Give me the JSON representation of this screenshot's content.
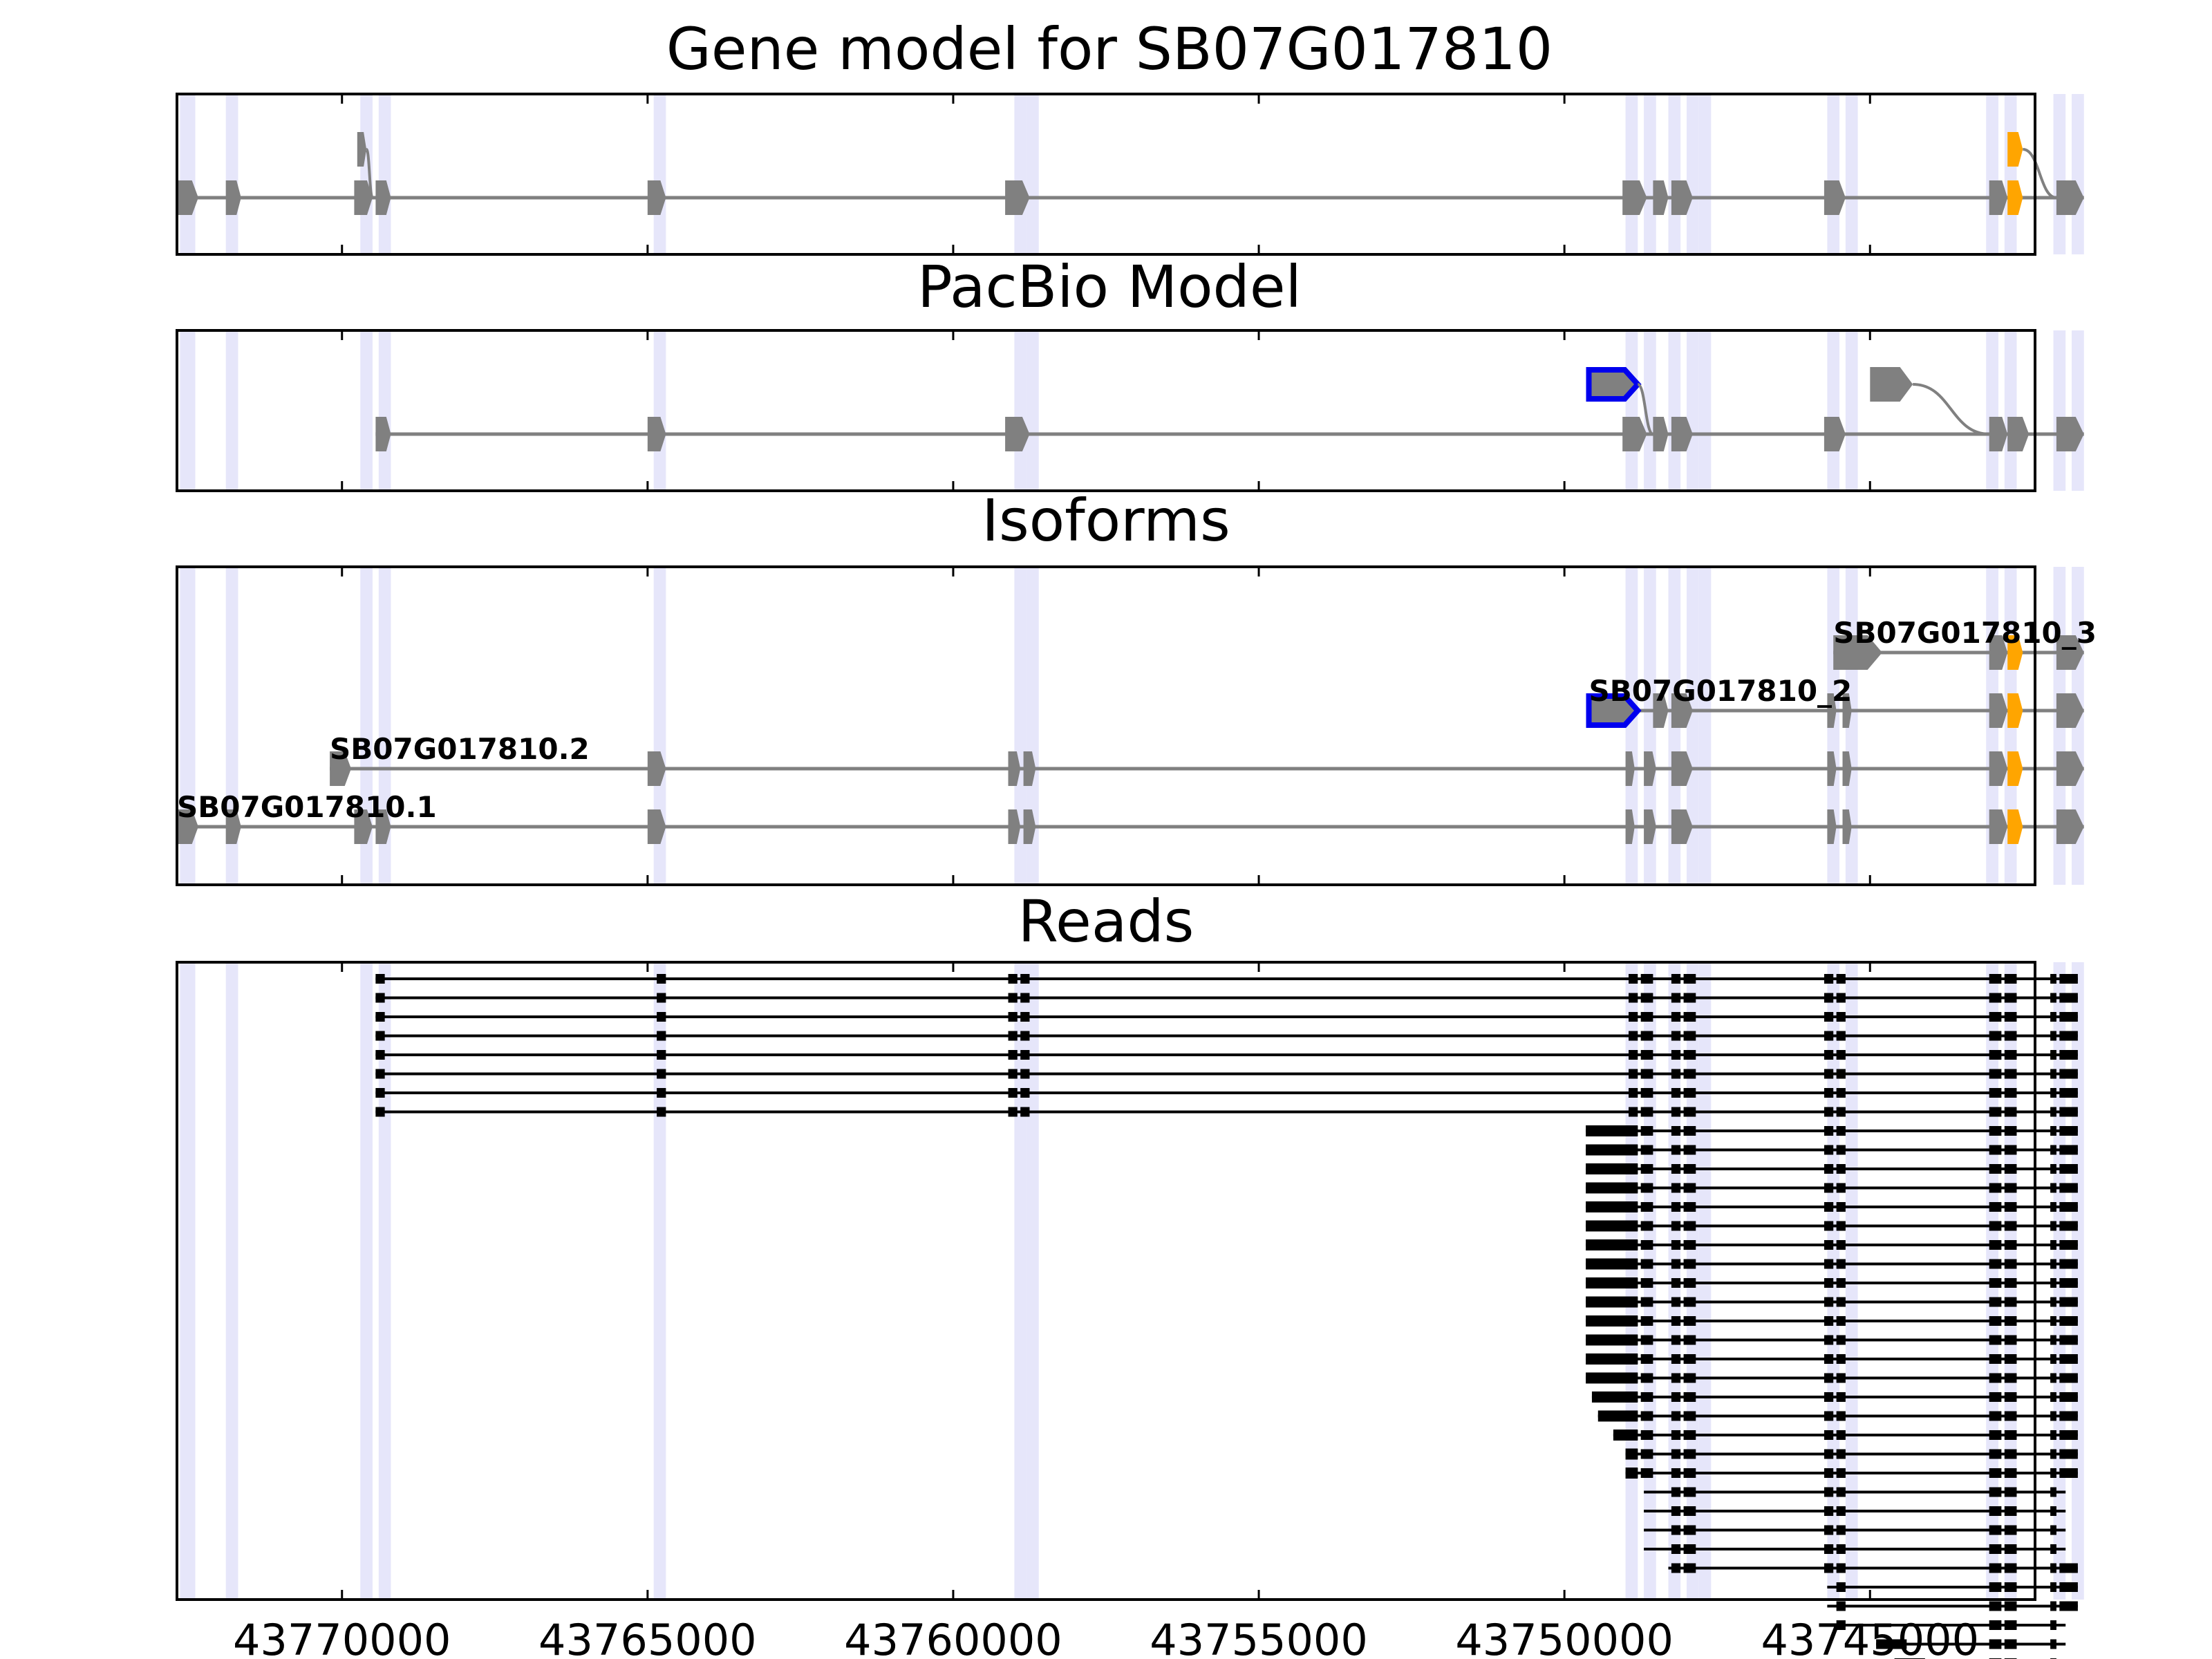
{
  "chart_data": {
    "type": "gene-track",
    "titles": {
      "gene_model": "Gene model for SB07G017810",
      "pacbio": "PacBio Model",
      "isoforms": "Isoforms",
      "reads": "Reads"
    },
    "x_axis": {
      "range": [
        43772700,
        43742300
      ],
      "ticks": [
        43770000,
        43765000,
        43760000,
        43755000,
        43750000,
        43745000
      ],
      "tick_labels": [
        "43770000",
        "43765000",
        "43760000",
        "43755000",
        "43750000",
        "43745000"
      ]
    },
    "colors": {
      "exon": "#808080",
      "cds_highlight": "#ffa500",
      "novel_outline": "#0000ee",
      "read": "#000000",
      "band": "#e6e6fa",
      "frame": "#000000"
    },
    "bands": [
      [
        43772650,
        43772400
      ],
      [
        43771900,
        43771700
      ],
      [
        43769700,
        43769500
      ],
      [
        43769400,
        43769200
      ],
      [
        43764900,
        43764700
      ],
      [
        43759000,
        43758800
      ],
      [
        43758800,
        43758600
      ],
      [
        43749000,
        43748800
      ],
      [
        43748700,
        43748500
      ],
      [
        43748300,
        43748100
      ],
      [
        43748000,
        43747800
      ],
      [
        43747800,
        43747600
      ],
      [
        43745700,
        43745500
      ],
      [
        43745400,
        43745200
      ],
      [
        43743100,
        43742900
      ],
      [
        43742800,
        43742600
      ],
      [
        43742000,
        43741800
      ],
      [
        43741700,
        43741500
      ]
    ],
    "gene_model": {
      "main_exons": [
        [
          43772700,
          43772350
        ],
        [
          43771900,
          43771650
        ],
        [
          43769800,
          43769500
        ],
        [
          43769450,
          43769200
        ],
        [
          43765000,
          43764700
        ],
        [
          43759150,
          43758750
        ],
        [
          43749050,
          43748650
        ],
        [
          43748550,
          43748300
        ],
        [
          43748250,
          43747900
        ],
        [
          43745750,
          43745400
        ],
        [
          43743050,
          43742750
        ],
        [
          43741950,
          43741500
        ]
      ],
      "cds_exons": [
        [
          43742750,
          43742500
        ]
      ],
      "upper_exons": [
        [
          43769750,
          43769600
        ],
        [
          43742750,
          43742500
        ]
      ],
      "junctions": [
        [
          43769600,
          43769500
        ],
        [
          43742500,
          43741950
        ]
      ]
    },
    "pacbio": {
      "main_exons": [
        [
          43769450,
          43769200
        ],
        [
          43765000,
          43764700
        ],
        [
          43759150,
          43758750
        ],
        [
          43749050,
          43748650
        ],
        [
          43748550,
          43748300
        ],
        [
          43748250,
          43747900
        ],
        [
          43745750,
          43745400
        ],
        [
          43743050,
          43742750
        ],
        [
          43742750,
          43742400
        ],
        [
          43741950,
          43741500
        ]
      ],
      "upper_exons": [
        [
          43745000,
          43744300
        ]
      ],
      "novel_exons": [
        [
          43749600,
          43748800
        ]
      ],
      "junctions": [
        [
          43748800,
          43748550
        ],
        [
          43744300,
          43743050
        ]
      ]
    },
    "isoforms": [
      {
        "label": "SB07G017810.1",
        "row": 0,
        "label_x": 43772700,
        "exons": [
          [
            43772700,
            43772350
          ],
          [
            43771900,
            43771650
          ],
          [
            43769800,
            43769500
          ],
          [
            43769450,
            43769200
          ],
          [
            43765000,
            43764700
          ],
          [
            43759100,
            43758900
          ],
          [
            43758850,
            43758650
          ],
          [
            43749000,
            43748850
          ],
          [
            43748700,
            43748500
          ],
          [
            43748250,
            43747900
          ],
          [
            43745700,
            43745550
          ],
          [
            43745450,
            43745300
          ],
          [
            43743050,
            43742750
          ],
          [
            43741950,
            43741500
          ]
        ],
        "cds": [
          [
            43742750,
            43742500
          ]
        ]
      },
      {
        "label": "SB07G017810.2",
        "row": 1,
        "label_x": 43770200,
        "exons": [
          [
            43770200,
            43769850
          ],
          [
            43765000,
            43764700
          ],
          [
            43759100,
            43758900
          ],
          [
            43758850,
            43758650
          ],
          [
            43749000,
            43748850
          ],
          [
            43748700,
            43748500
          ],
          [
            43748250,
            43747900
          ],
          [
            43745700,
            43745550
          ],
          [
            43745450,
            43745300
          ],
          [
            43743050,
            43742750
          ],
          [
            43741950,
            43741500
          ]
        ],
        "cds": [
          [
            43742750,
            43742500
          ]
        ]
      },
      {
        "label": "SB07G017810_2",
        "row": 2,
        "label_x": 43749600,
        "exons": [
          [
            43748550,
            43748300
          ],
          [
            43748250,
            43747900
          ],
          [
            43745700,
            43745550
          ],
          [
            43745450,
            43745300
          ],
          [
            43743050,
            43742750
          ],
          [
            43741950,
            43741500
          ]
        ],
        "novel": [
          [
            43749600,
            43748800
          ]
        ],
        "cds": [
          [
            43742750,
            43742500
          ]
        ]
      },
      {
        "label": "SB07G017810_3",
        "row": 3,
        "label_x": 43745600,
        "exons": [
          [
            43745600,
            43744800
          ],
          [
            43743050,
            43742750
          ],
          [
            43741950,
            43741500
          ]
        ],
        "cds": [
          [
            43742750,
            43742500
          ]
        ]
      }
    ],
    "reads": {
      "full_count": 8,
      "full_exons": [
        [
          43769450,
          43769300
        ],
        [
          43764850,
          43764700
        ],
        [
          43759100,
          43758950
        ],
        [
          43758900,
          43758750
        ],
        [
          43748950,
          43748800
        ],
        [
          43748750,
          43748550
        ],
        [
          43748250,
          43748100
        ],
        [
          43748050,
          43747850
        ],
        [
          43745750,
          43745600
        ],
        [
          43745550,
          43745400
        ],
        [
          43743050,
          43742850
        ],
        [
          43742800,
          43742600
        ],
        [
          43742050,
          43741950
        ],
        [
          43741900,
          43741600
        ]
      ],
      "partial_exons": [
        [
          43748950,
          43748800
        ],
        [
          43748750,
          43748550
        ],
        [
          43748250,
          43748100
        ],
        [
          43748050,
          43747850
        ],
        [
          43745750,
          43745600
        ],
        [
          43745550,
          43745400
        ],
        [
          43743050,
          43742850
        ],
        [
          43742800,
          43742600
        ],
        [
          43742050,
          43741950
        ],
        [
          43741900,
          43741600
        ]
      ],
      "partial_starts": [
        43749650,
        43749650,
        43749650,
        43749650,
        43749650,
        43749650,
        43749650,
        43749650,
        43749650,
        43749650,
        43749650,
        43749650,
        43749650,
        43749650,
        43749550,
        43749450,
        43749200,
        43749000,
        43749000,
        43748700,
        43748700,
        43748700,
        43748700,
        43748300,
        43745700,
        43745700,
        43745700,
        43744900,
        43744600
      ],
      "partial_ends": [
        43741600,
        43741600,
        43741600,
        43741600,
        43741600,
        43741600,
        43741600,
        43741600,
        43741600,
        43741600,
        43741600,
        43741600,
        43741600,
        43741600,
        43741600,
        43741600,
        43741600,
        43741600,
        43741600,
        43741800,
        43741800,
        43741800,
        43741800,
        43741600,
        43741600,
        43741600,
        43741800,
        43741800,
        43741800
      ],
      "short_first": [
        1,
        1,
        1,
        1,
        1,
        1,
        1,
        1,
        1,
        1,
        1,
        1,
        1,
        1,
        1,
        1,
        1,
        1,
        1,
        0,
        0,
        0,
        0,
        0,
        0,
        0,
        0,
        0,
        0
      ]
    }
  }
}
